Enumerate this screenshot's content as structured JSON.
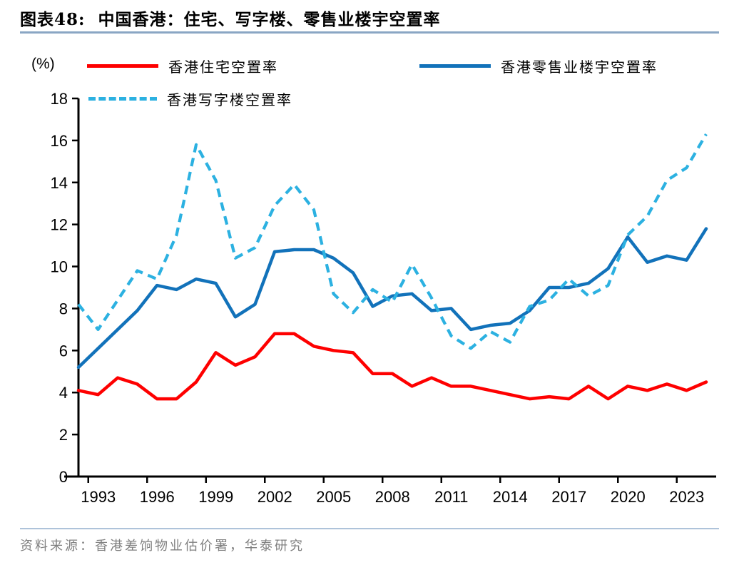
{
  "header": {
    "figure_label": "图表48:",
    "title": "中国香港：住宅、写字楼、零售业楼宇空置率"
  },
  "axis_unit": "(%)",
  "legend": {
    "residential": {
      "label": "香港住宅空置率",
      "color": "#fe0000",
      "style": "solid"
    },
    "retail": {
      "label": "香港零售业楼宇空置率",
      "color": "#1272ba",
      "style": "solid"
    },
    "office": {
      "label": "香港写字楼空置率",
      "color": "#2cb1e1",
      "style": "dashed"
    }
  },
  "chart_data": {
    "type": "line",
    "title": "中国香港：住宅、写字楼、零售业楼宇空置率",
    "xlabel": "",
    "ylabel": "(%)",
    "ylim": [
      0,
      18
    ],
    "ytick_step": 2,
    "xticks": [
      1993,
      1996,
      1999,
      2002,
      2005,
      2008,
      2011,
      2014,
      2017,
      2020,
      2023
    ],
    "grid": false,
    "legend_position": "top",
    "x": [
      1992,
      1993,
      1994,
      1995,
      1996,
      1997,
      1998,
      1999,
      2000,
      2001,
      2002,
      2003,
      2004,
      2005,
      2006,
      2007,
      2008,
      2009,
      2010,
      2011,
      2012,
      2013,
      2014,
      2015,
      2016,
      2017,
      2018,
      2019,
      2020,
      2021,
      2022,
      2023,
      2024
    ],
    "series": [
      {
        "name": "香港住宅空置率",
        "color": "#fe0000",
        "style": "solid",
        "values": [
          4.1,
          3.9,
          4.7,
          4.4,
          3.7,
          3.7,
          4.5,
          5.9,
          5.3,
          5.7,
          6.8,
          6.8,
          6.2,
          6.0,
          5.9,
          4.9,
          4.9,
          4.3,
          4.7,
          4.3,
          4.3,
          4.1,
          3.9,
          3.7,
          3.8,
          3.7,
          4.3,
          3.7,
          4.3,
          4.1,
          4.4,
          4.1,
          4.5
        ]
      },
      {
        "name": "香港零售业楼宇空置率",
        "color": "#1272ba",
        "style": "solid",
        "values": [
          5.2,
          6.1,
          7.0,
          7.9,
          9.1,
          8.9,
          9.4,
          9.2,
          7.6,
          8.2,
          10.7,
          10.8,
          10.8,
          10.4,
          9.7,
          8.1,
          8.6,
          8.7,
          7.9,
          8.0,
          7.0,
          7.2,
          7.3,
          7.9,
          9.0,
          9.0,
          9.2,
          9.9,
          11.4,
          10.2,
          10.5,
          10.3,
          11.8
        ]
      },
      {
        "name": "香港写字楼空置率",
        "color": "#2cb1e1",
        "style": "dashed",
        "values": [
          8.2,
          7.0,
          8.4,
          9.8,
          9.4,
          11.5,
          15.8,
          14.1,
          10.4,
          10.9,
          12.9,
          13.9,
          12.7,
          8.7,
          7.8,
          8.9,
          8.3,
          10.1,
          8.5,
          6.7,
          6.1,
          6.9,
          6.4,
          8.1,
          8.4,
          9.4,
          8.6,
          9.1,
          11.5,
          12.4,
          14.1,
          14.7,
          16.3
        ]
      }
    ]
  },
  "source": {
    "text": "资料来源：香港差饷物业估价署，华泰研究"
  }
}
